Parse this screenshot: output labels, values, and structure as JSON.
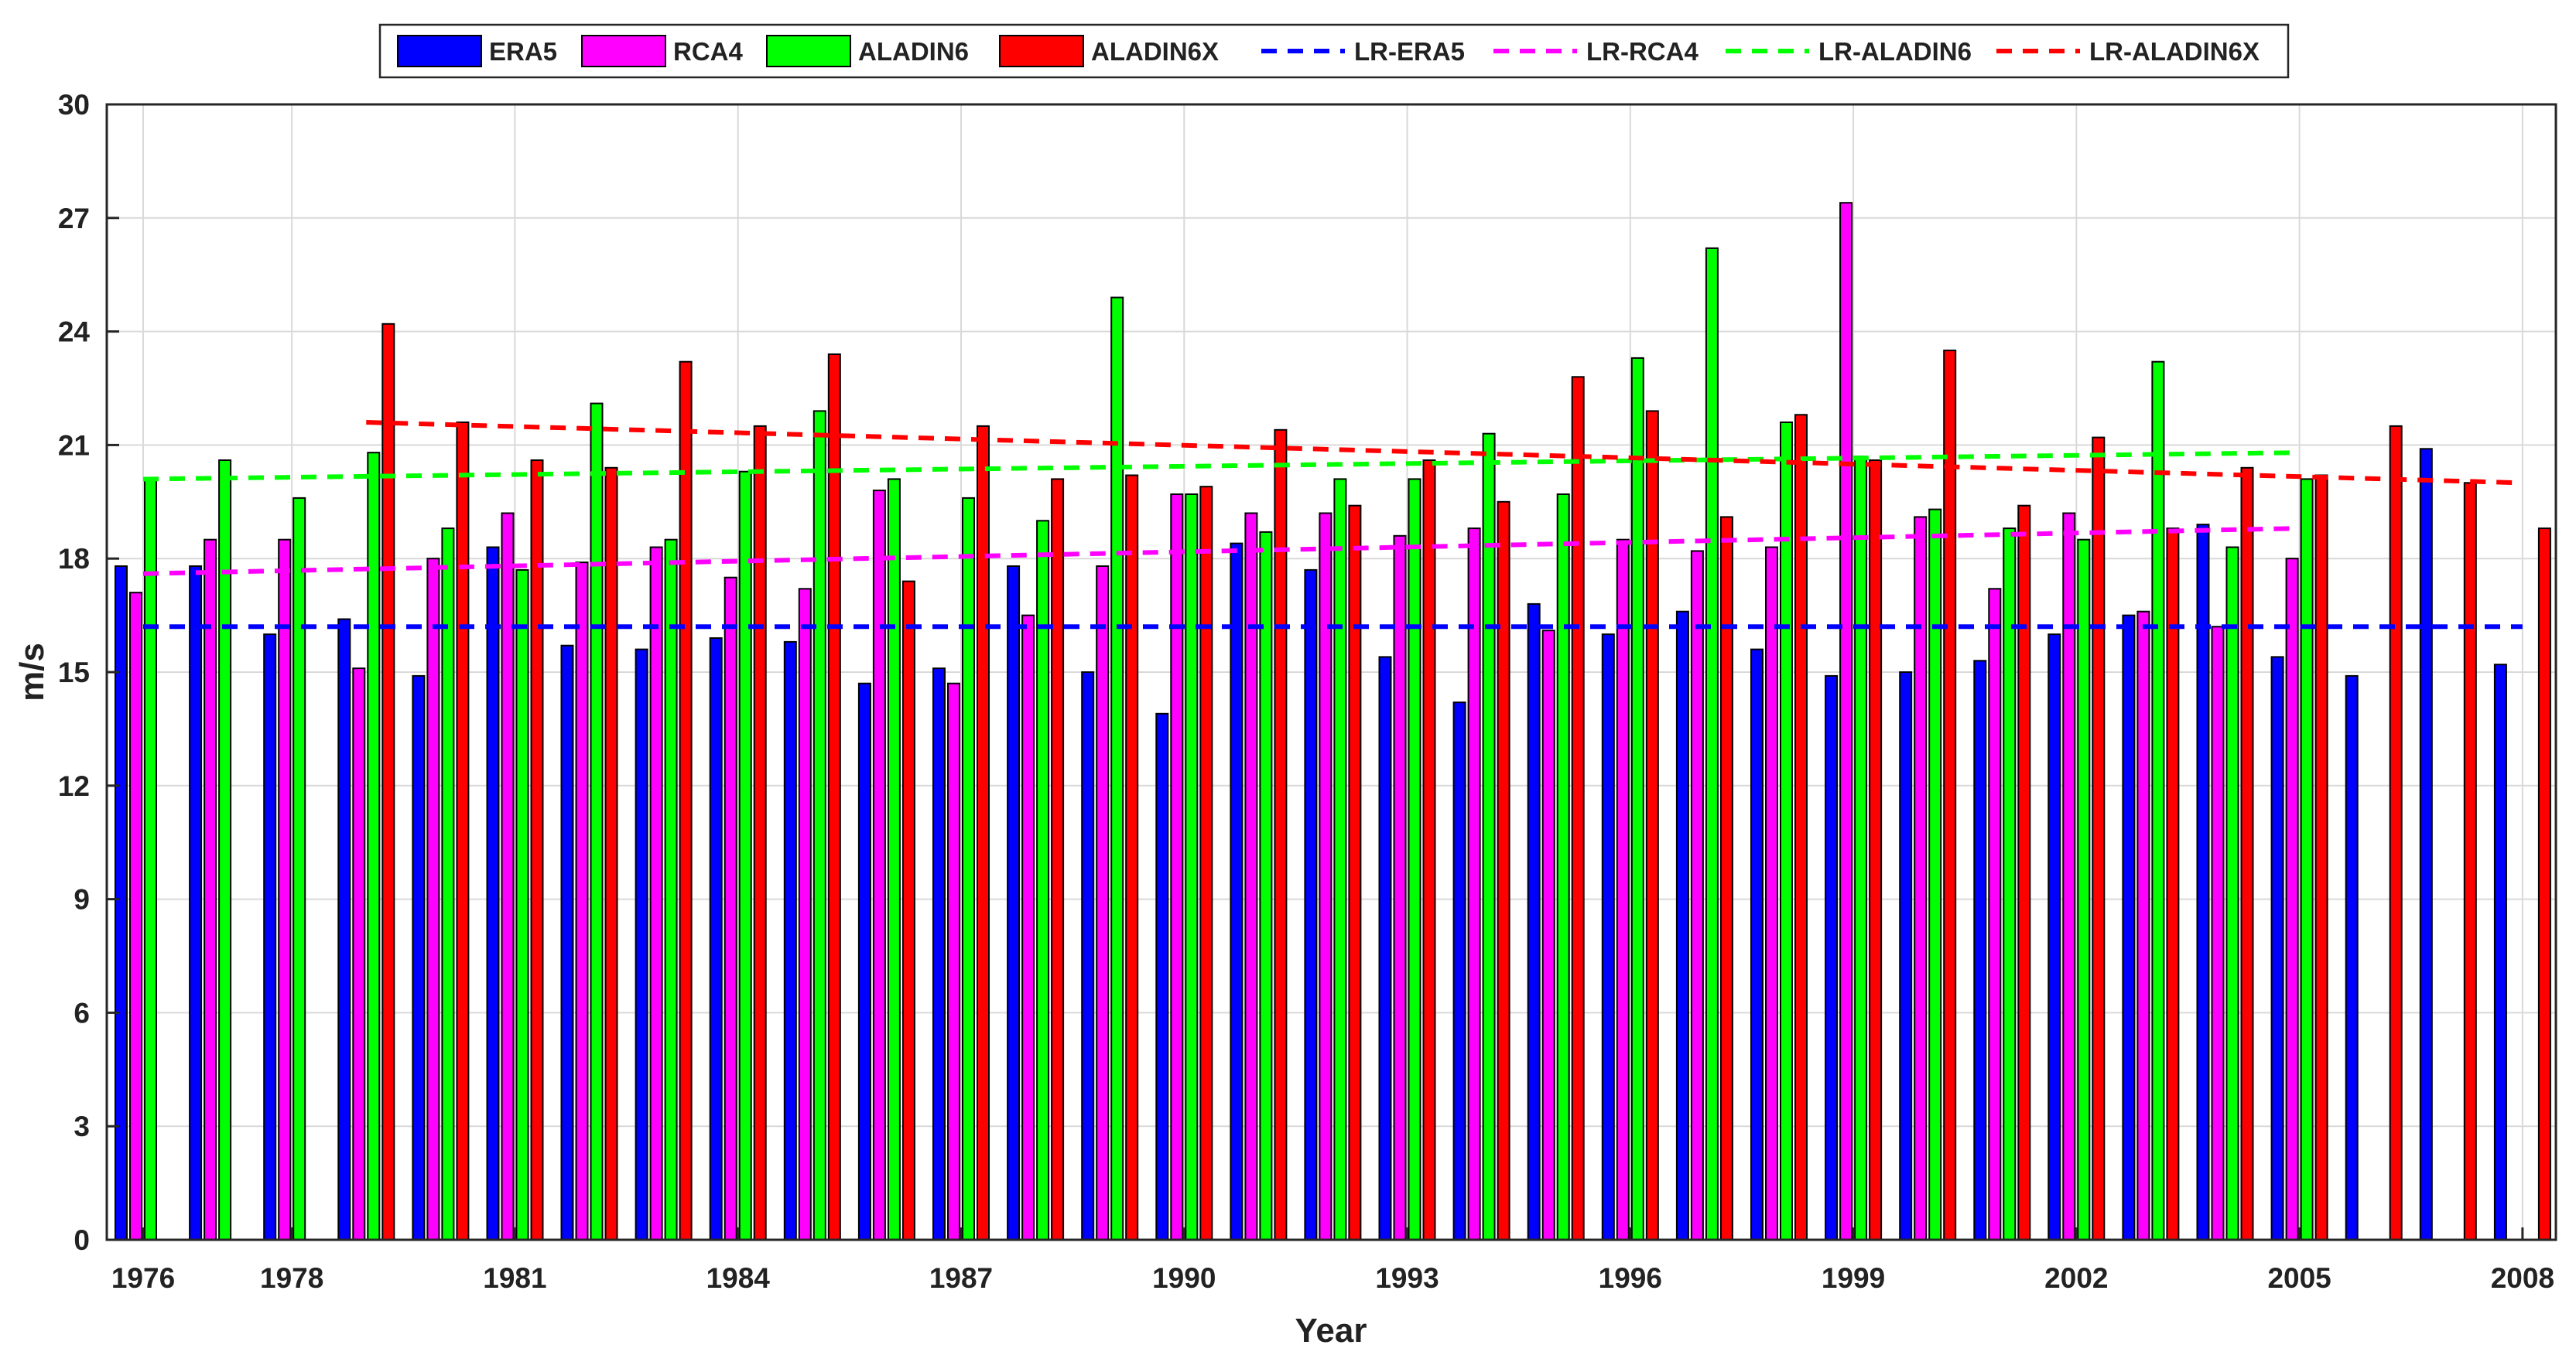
{
  "chart_data": {
    "type": "bar",
    "xlabel": "Year",
    "ylabel": "m/s",
    "ylim": [
      0,
      30
    ],
    "yticks": [
      0,
      3,
      6,
      9,
      12,
      15,
      18,
      21,
      24,
      27,
      30
    ],
    "x": [
      1976,
      1977,
      1978,
      1979,
      1980,
      1981,
      1982,
      1983,
      1984,
      1985,
      1986,
      1987,
      1988,
      1989,
      1990,
      1991,
      1992,
      1993,
      1994,
      1995,
      1996,
      1997,
      1998,
      1999,
      2000,
      2001,
      2002,
      2003,
      2004,
      2005,
      2006,
      2007,
      2008
    ],
    "xtick_labels": [
      "1976",
      "1978",
      "1981",
      "1984",
      "1987",
      "1990",
      "1993",
      "1996",
      "1999",
      "2002",
      "2005",
      "2008"
    ],
    "grid": true,
    "legend_position": "top-center",
    "series": [
      {
        "name": "ERA5",
        "color": "#0000ff",
        "values": [
          17.8,
          17.8,
          16.0,
          16.4,
          14.9,
          18.3,
          15.7,
          15.6,
          15.9,
          15.8,
          14.7,
          15.1,
          17.8,
          15.0,
          13.9,
          18.4,
          17.7,
          15.4,
          14.2,
          16.8,
          16.0,
          16.6,
          15.6,
          14.9,
          15.0,
          15.3,
          16.0,
          16.5,
          18.9,
          15.4,
          14.9,
          20.9,
          15.2
        ]
      },
      {
        "name": "RCA4",
        "color": "#ff00ff",
        "values": [
          17.1,
          18.5,
          18.5,
          15.1,
          18.0,
          19.2,
          17.9,
          18.3,
          17.5,
          17.2,
          19.8,
          14.7,
          16.5,
          17.8,
          19.7,
          19.2,
          19.2,
          18.6,
          18.8,
          16.1,
          18.5,
          18.2,
          18.3,
          27.4,
          19.1,
          17.2,
          19.2,
          16.6,
          16.2,
          18.0,
          null,
          null,
          null
        ]
      },
      {
        "name": "ALADIN6",
        "color": "#00ff00",
        "values": [
          20.1,
          20.6,
          19.6,
          20.8,
          18.8,
          17.7,
          22.1,
          18.5,
          20.3,
          21.9,
          20.1,
          19.6,
          19.0,
          24.9,
          19.7,
          18.7,
          20.1,
          20.1,
          21.3,
          19.7,
          23.3,
          26.2,
          21.6,
          20.7,
          19.3,
          18.8,
          18.5,
          23.2,
          18.3,
          20.1,
          null,
          null,
          null
        ]
      },
      {
        "name": "ALADIN6X",
        "color": "#ff0000",
        "values": [
          null,
          null,
          null,
          24.2,
          21.6,
          20.6,
          20.4,
          23.2,
          21.5,
          23.4,
          17.4,
          21.5,
          20.1,
          20.2,
          19.9,
          21.4,
          19.4,
          20.6,
          19.5,
          22.8,
          21.9,
          19.1,
          21.8,
          20.6,
          23.5,
          19.4,
          21.2,
          18.8,
          20.4,
          20.2,
          21.5,
          20.0,
          18.8
        ]
      }
    ],
    "trend_lines": [
      {
        "name": "LR-ERA5",
        "color": "#0000ff",
        "x": [
          1976,
          2008
        ],
        "y": [
          16.2,
          16.2
        ]
      },
      {
        "name": "LR-RCA4",
        "color": "#ff00ff",
        "x": [
          1976,
          2005
        ],
        "y": [
          17.6,
          18.8
        ]
      },
      {
        "name": "LR-ALADIN6",
        "color": "#00ff00",
        "x": [
          1976,
          2005
        ],
        "y": [
          20.1,
          20.8
        ]
      },
      {
        "name": "LR-ALADIN6X",
        "color": "#ff0000",
        "x": [
          1979,
          2008
        ],
        "y": [
          21.6,
          20.0
        ]
      }
    ],
    "legend_entries": [
      "ERA5",
      "RCA4",
      "ALADIN6",
      "ALADIN6X",
      "LR-ERA5",
      "LR-RCA4",
      "LR-ALADIN6",
      "LR-ALADIN6X"
    ]
  }
}
